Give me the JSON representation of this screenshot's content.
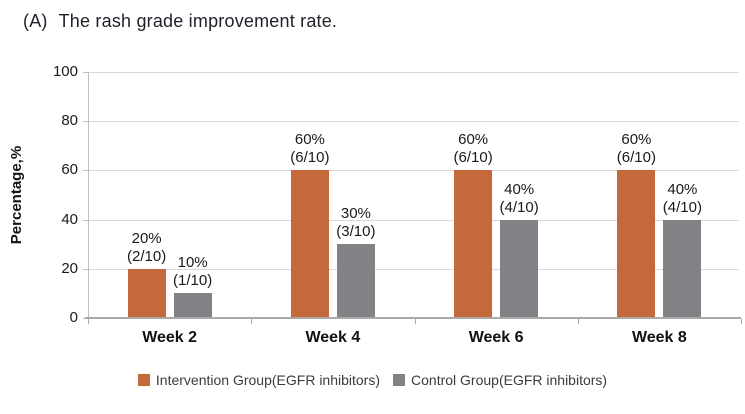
{
  "title": {
    "prefix": "(A)",
    "text": "The rash grade improvement rate."
  },
  "chart_data": {
    "type": "bar",
    "title": "(A) The rash grade improvement rate.",
    "categories": [
      "Week 2",
      "Week 4",
      "Week 6",
      "Week 8"
    ],
    "series": [
      {
        "name": "Intervention Group(EGFR inhibitors)",
        "color": "#C5693C",
        "values": [
          20,
          60,
          60,
          60
        ],
        "point_labels": [
          [
            "20%",
            "(2/10)"
          ],
          [
            "60%",
            "(6/10)"
          ],
          [
            "60%",
            "(6/10)"
          ],
          [
            "60%",
            "(6/10)"
          ]
        ]
      },
      {
        "name": "Control Group(EGFR inhibitors)",
        "color": "#818286",
        "values": [
          10,
          30,
          40,
          40
        ],
        "point_labels": [
          [
            "10%",
            "(1/10)"
          ],
          [
            "30%",
            "(3/10)"
          ],
          [
            "40%",
            "(4/10)"
          ],
          [
            "40%",
            "(4/10)"
          ]
        ]
      }
    ],
    "xlabel": "",
    "ylabel": "Percentage,%",
    "ylim": [
      0,
      100
    ],
    "yticks": [
      0,
      20,
      40,
      60,
      80,
      100
    ],
    "grid": true,
    "legend_position": "bottom"
  },
  "colors": {
    "gridline": "#d9d9d9",
    "axis": "#a9a9a9",
    "text": "#1a1a1a"
  }
}
